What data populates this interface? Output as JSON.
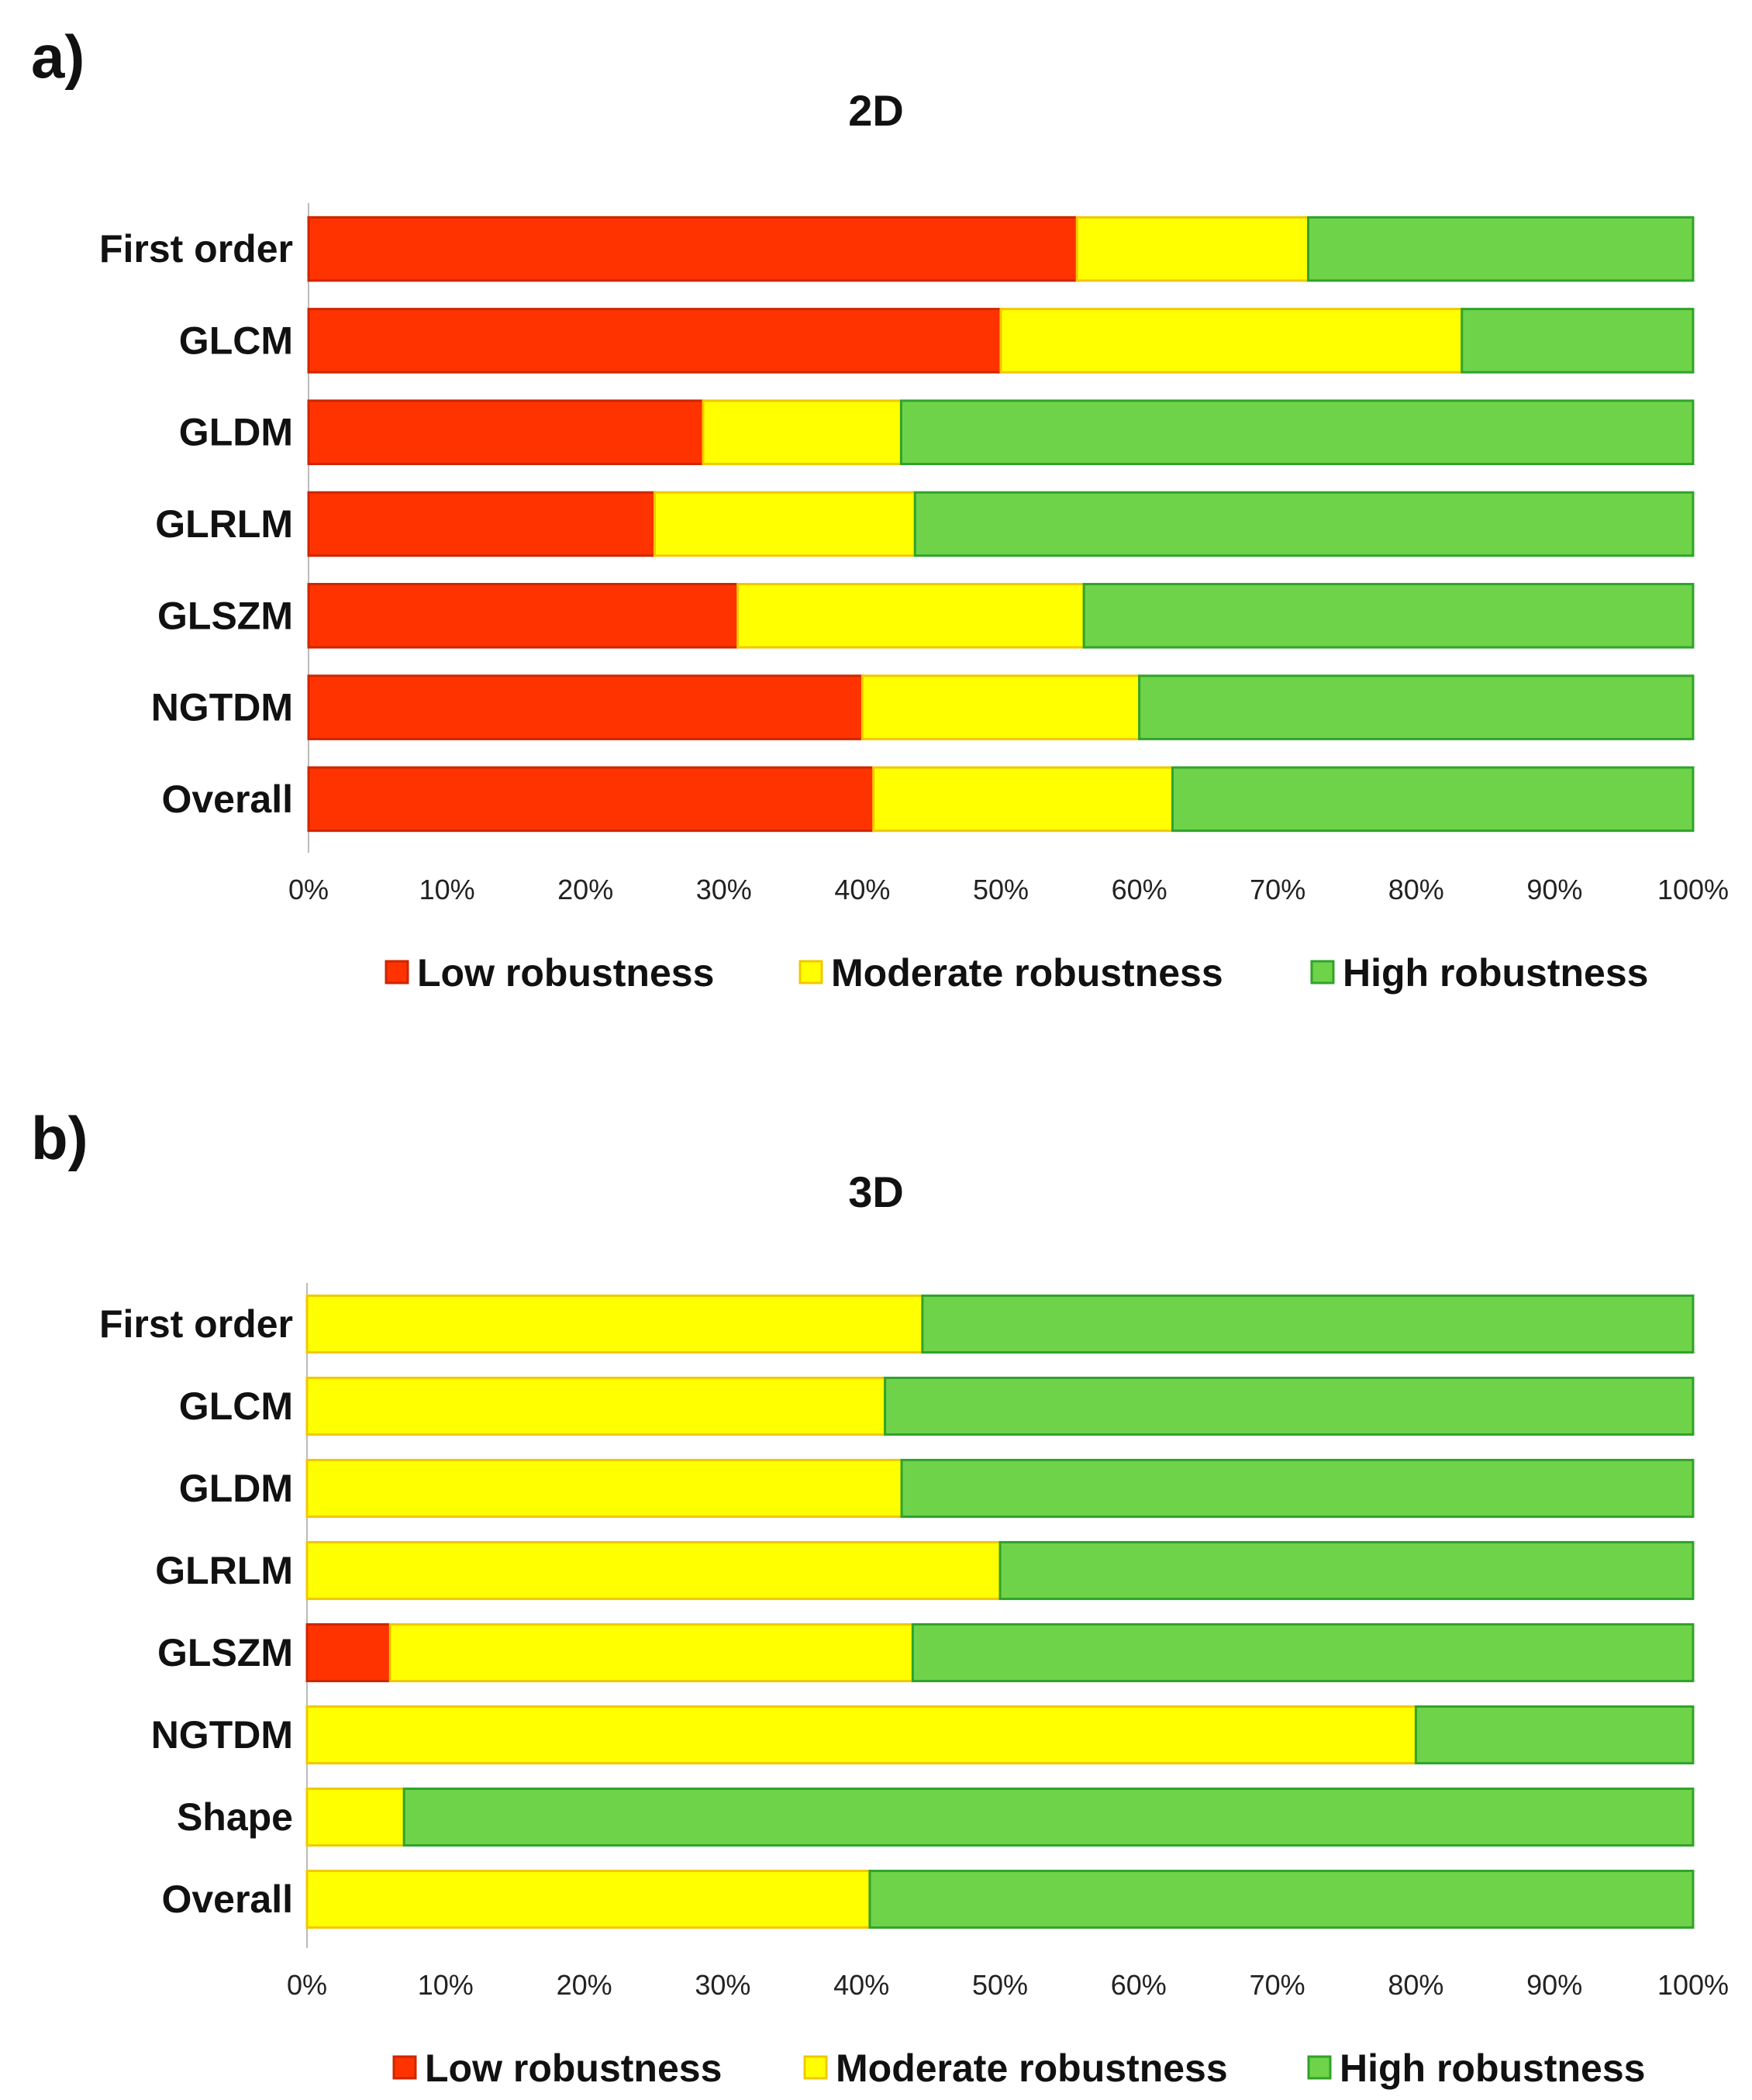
{
  "chart_data": [
    {
      "panel": "a)",
      "type": "bar",
      "orientation": "horizontal",
      "stacked": "percent",
      "title": "2D",
      "categories": [
        "First order",
        "GLCM",
        "GLDM",
        "GLRLM",
        "GLSZM",
        "NGTDM",
        "Overall"
      ],
      "series": [
        {
          "name": "Low robustness",
          "color": "#ff3300",
          "values": [
            55.5,
            50.0,
            28.5,
            25.0,
            31.0,
            40.0,
            40.8
          ]
        },
        {
          "name": "Moderate robustness",
          "color": "#ffff00",
          "values": [
            16.7,
            33.3,
            14.3,
            18.8,
            25.0,
            20.0,
            21.6
          ]
        },
        {
          "name": "High robustness",
          "color": "#6fd34a",
          "values": [
            27.8,
            16.7,
            57.2,
            56.2,
            44.0,
            40.0,
            37.6
          ]
        }
      ],
      "xticks": [
        "0%",
        "10%",
        "20%",
        "30%",
        "40%",
        "50%",
        "60%",
        "70%",
        "80%",
        "90%",
        "100%"
      ],
      "xlim": [
        0,
        100
      ],
      "legend": "bottom"
    },
    {
      "panel": "b)",
      "type": "bar",
      "orientation": "horizontal",
      "stacked": "percent",
      "title": "3D",
      "categories": [
        "First order",
        "GLCM",
        "GLDM",
        "GLRLM",
        "GLSZM",
        "NGTDM",
        "Shape",
        "Overall"
      ],
      "series": [
        {
          "name": "Low robustness",
          "color": "#ff3300",
          "values": [
            0,
            0,
            0,
            0,
            6.0,
            0,
            0,
            0
          ]
        },
        {
          "name": "Moderate robustness",
          "color": "#ffff00",
          "values": [
            44.4,
            41.7,
            42.9,
            50.0,
            37.7,
            80.0,
            7.0,
            40.6
          ]
        },
        {
          "name": "High robustness",
          "color": "#6fd34a",
          "values": [
            55.6,
            58.3,
            57.1,
            50.0,
            56.3,
            20.0,
            93.0,
            59.4
          ]
        }
      ],
      "xticks": [
        "0%",
        "10%",
        "20%",
        "30%",
        "40%",
        "50%",
        "60%",
        "70%",
        "80%",
        "90%",
        "100%"
      ],
      "xlim": [
        0,
        100
      ],
      "legend": "bottom"
    }
  ]
}
